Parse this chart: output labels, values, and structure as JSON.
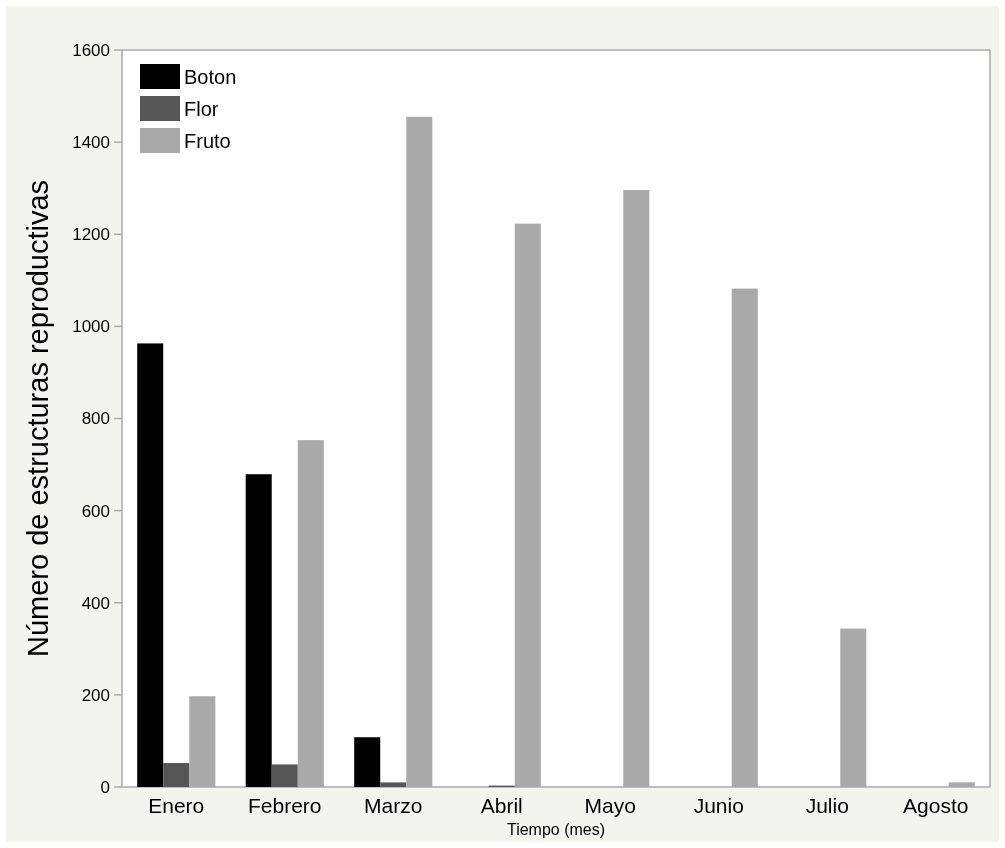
{
  "chart_data": {
    "type": "bar",
    "xlabel": "Tiempo (mes)",
    "ylabel": "Número de estructuras reproductivas",
    "categories": [
      "Enero",
      "Febrero",
      "Marzo",
      "Abril",
      "Mayo",
      "Junio",
      "Julio",
      "Agosto"
    ],
    "series": [
      {
        "name": "Boton",
        "color": "#000000",
        "values": [
          963,
          679,
          108,
          0,
          0,
          0,
          0,
          0
        ]
      },
      {
        "name": "Flor",
        "color": "#555555",
        "values": [
          52,
          49,
          10,
          3,
          0,
          0,
          0,
          0
        ]
      },
      {
        "name": "Fruto",
        "color": "#a9a9a9",
        "values": [
          197,
          753,
          1455,
          1223,
          1296,
          1082,
          344,
          10
        ]
      }
    ],
    "ylim": [
      0,
      1600
    ],
    "yticks": [
      0,
      200,
      400,
      600,
      800,
      1000,
      1200,
      1400,
      1600
    ],
    "grid": false,
    "legend": "top left"
  }
}
